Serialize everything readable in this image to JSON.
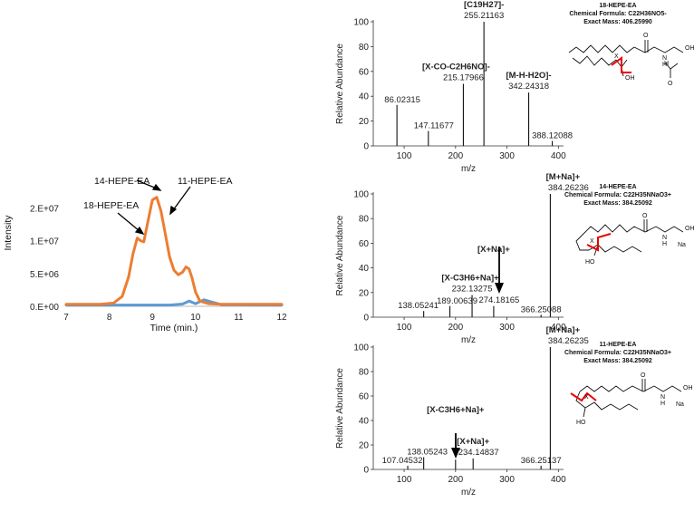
{
  "chart_data": [
    {
      "type": "line",
      "xlabel": "Time (min.)",
      "ylabel": "Intensity",
      "xlim": [
        7,
        12
      ],
      "ylim": [
        0,
        20000000
      ],
      "x_ticks": [
        "7",
        "8",
        "9",
        "10",
        "11",
        "12"
      ],
      "y_ticks": [
        "0.E+00",
        "5.E+06",
        "1.E+07",
        "2.E+07"
      ],
      "y_tick_values": [
        0,
        5000000,
        10000000,
        15000000
      ],
      "annotations": [
        "14-HEPE-EA",
        "11-HEPE-EA",
        "18-HEPE-EA"
      ],
      "series": [
        {
          "color": "#ED7D31",
          "x": [
            7.0,
            7.8,
            8.1,
            8.3,
            8.45,
            8.55,
            8.65,
            8.72,
            8.8,
            8.9,
            9.0,
            9.1,
            9.2,
            9.3,
            9.4,
            9.5,
            9.6,
            9.7,
            9.78,
            9.85,
            9.92,
            10.0,
            10.1,
            10.3,
            10.6,
            12.0
          ],
          "y": [
            300000,
            300000,
            500000,
            1500000,
            4500000,
            8000000,
            10400000,
            10000000,
            9800000,
            13000000,
            16200000,
            16600000,
            14500000,
            11000000,
            7500000,
            5500000,
            4800000,
            5200000,
            6000000,
            5700000,
            4300000,
            2200000,
            800000,
            400000,
            300000,
            300000
          ]
        },
        {
          "color": "#5B9BD5",
          "x": [
            7.0,
            9.4,
            9.7,
            9.85,
            10.0,
            10.2,
            10.35,
            10.6,
            12.0
          ],
          "y": [
            200000,
            200000,
            350000,
            800000,
            400000,
            1000000,
            700000,
            250000,
            200000
          ]
        }
      ]
    },
    {
      "type": "bar",
      "title": "18-HEPE-EA",
      "formula_lines": [
        "Chemical Formula: C22H36NO5-",
        "Exact Mass: 406.25990"
      ],
      "xlabel": "m/z",
      "ylabel": "Relative Abundance",
      "xlim": [
        40,
        410
      ],
      "ylim": [
        0,
        100
      ],
      "x_ticks": [
        "100",
        "200",
        "300",
        "400"
      ],
      "y_ticks": [
        "0",
        "20",
        "40",
        "60",
        "80",
        "100"
      ],
      "peaks": [
        {
          "mz": 86.02315,
          "value": 33,
          "label": "86.02315"
        },
        {
          "mz": 147.11677,
          "value": 12,
          "label": "147.11677"
        },
        {
          "mz": 215.17966,
          "value": 50,
          "label": "215.17966",
          "ion": "[X-CO-C2H6NO]-"
        },
        {
          "mz": 255.21163,
          "value": 100,
          "label": "255.21163",
          "ion": "[C19H27]-"
        },
        {
          "mz": 342.24318,
          "value": 43,
          "label": "342.24318",
          "ion": "[M-H-H2O]-"
        },
        {
          "mz": 388.12088,
          "value": 4,
          "label": "388.12088"
        }
      ]
    },
    {
      "type": "bar",
      "title": "14-HEPE-EA",
      "formula_lines": [
        "Chemical Formula: C22H35NNaO3+",
        "Exact Mass: 384.25092"
      ],
      "xlabel": "m/z",
      "ylabel": "Relative Abundance",
      "xlim": [
        40,
        410
      ],
      "ylim": [
        0,
        100
      ],
      "x_ticks": [
        "100",
        "200",
        "300",
        "400"
      ],
      "y_ticks": [
        "0",
        "20",
        "40",
        "60",
        "80",
        "100"
      ],
      "peaks": [
        {
          "mz": 138.05241,
          "value": 5,
          "label": "138.05241"
        },
        {
          "mz": 189.00639,
          "value": 9,
          "label": "189.00639"
        },
        {
          "mz": 232.13275,
          "value": 18,
          "label": "232.13275",
          "ion": "[X-C3H6+Na]+"
        },
        {
          "mz": 274.18165,
          "value": 9,
          "label": "274.18165",
          "ion": "[X+Na]+"
        },
        {
          "mz": 366.25088,
          "value": 2,
          "label": "366.25088"
        },
        {
          "mz": 384.26236,
          "value": 100,
          "label": "384.26236",
          "ion": "[M+Na]+"
        }
      ]
    },
    {
      "type": "bar",
      "title": "11-HEPE-EA",
      "formula_lines": [
        "Chemical Formula: C22H35NNaO3+",
        "Exact Mass: 384.25092"
      ],
      "xlabel": "m/z",
      "ylabel": "Relative Abundance",
      "xlim": [
        40,
        410
      ],
      "ylim": [
        0,
        100
      ],
      "x_ticks": [
        "100",
        "200",
        "300",
        "400"
      ],
      "y_ticks": [
        "0",
        "20",
        "40",
        "60",
        "80",
        "100"
      ],
      "peaks": [
        {
          "mz": 107.04532,
          "value": 3,
          "label": "107.04532"
        },
        {
          "mz": 138.05243,
          "value": 10,
          "label": "138.05243"
        },
        {
          "mz": 200.0,
          "value": 8,
          "label": "",
          "ion": "[X-C3H6+Na]+"
        },
        {
          "mz": 234.14837,
          "value": 9,
          "label": "234.14837",
          "ion": "[X+Na]+"
        },
        {
          "mz": 366.25137,
          "value": 3,
          "label": "366.25137"
        },
        {
          "mz": 384.26235,
          "value": 100,
          "label": "384.26235",
          "ion": "[M+Na]+"
        }
      ]
    }
  ],
  "structure_atoms": {
    "hydroxyl": "OH",
    "hydroxyl_left": "HO",
    "nh": "N",
    "h": "H",
    "o": "O",
    "na": "Na",
    "x": "X"
  }
}
